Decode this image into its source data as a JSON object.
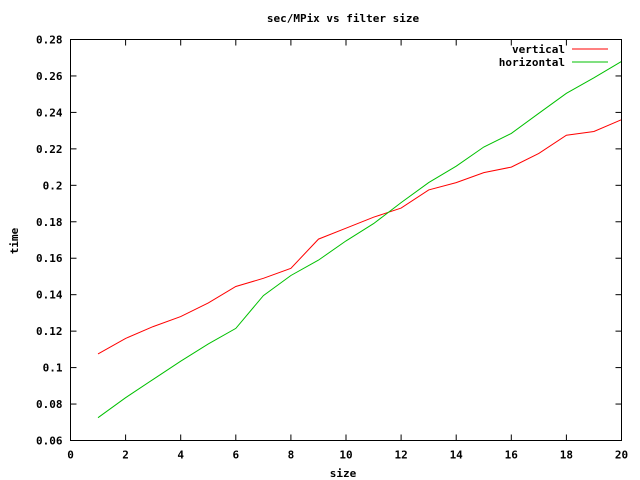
{
  "chart_data": {
    "type": "line",
    "title": "sec/MPix vs filter size",
    "xlabel": "size",
    "ylabel": "time",
    "xlim": [
      0,
      20
    ],
    "ylim": [
      0.06,
      0.28
    ],
    "xticks": [
      0,
      2,
      4,
      6,
      8,
      10,
      12,
      14,
      16,
      18,
      20
    ],
    "xtick_labels": [
      "0",
      "2",
      "4",
      "6",
      "8",
      "10",
      "12",
      "14",
      "16",
      "18",
      "20"
    ],
    "yticks": [
      0.06,
      0.08,
      0.1,
      0.12,
      0.14,
      0.16,
      0.18,
      0.2,
      0.22,
      0.24,
      0.26,
      0.28
    ],
    "ytick_labels": [
      "0.06",
      "0.08",
      "0.1",
      "0.12",
      "0.14",
      "0.16",
      "0.18",
      "0.2",
      "0.22",
      "0.24",
      "0.26",
      "0.28"
    ],
    "legend_position": "top-right",
    "x": [
      1,
      2,
      3,
      4,
      5,
      6,
      7,
      8,
      9,
      10,
      11,
      12,
      13,
      14,
      15,
      16,
      17,
      18,
      19,
      20
    ],
    "series": [
      {
        "name": "vertical",
        "color": "#ff0000",
        "values": [
          0.1075,
          0.116,
          0.1225,
          0.128,
          0.1355,
          0.1445,
          0.149,
          0.1545,
          0.1705,
          0.1765,
          0.1825,
          0.1875,
          0.1975,
          0.2015,
          0.207,
          0.21,
          0.2175,
          0.2275,
          0.2295,
          0.236
        ]
      },
      {
        "name": "horizontal",
        "color": "#00c000",
        "values": [
          0.0725,
          0.0835,
          0.0935,
          0.1035,
          0.113,
          0.1215,
          0.1395,
          0.1505,
          0.159,
          0.1695,
          0.179,
          0.1905,
          0.2015,
          0.2105,
          0.221,
          0.2285,
          0.2395,
          0.2505,
          0.259,
          0.268
        ]
      }
    ]
  }
}
